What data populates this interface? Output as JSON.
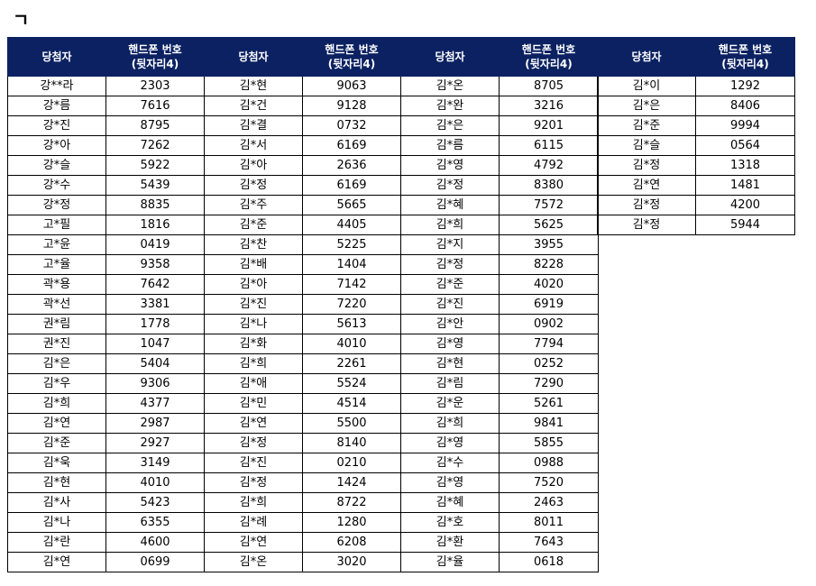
{
  "section_title": "ㄱ",
  "header": {
    "winner": "당첨자",
    "phone_line1": "핸드폰 번호",
    "phone_line2": "(뒷자리4)"
  },
  "rows": [
    [
      "강**라",
      "2303",
      "김*현",
      "9063",
      "김*온",
      "8705",
      "김*이",
      "1292"
    ],
    [
      "강*름",
      "7616",
      "김*건",
      "9128",
      "김*완",
      "3216",
      "김*은",
      "8406"
    ],
    [
      "강*진",
      "8795",
      "김*결",
      "0732",
      "김*은",
      "9201",
      "김*준",
      "9994"
    ],
    [
      "강*아",
      "7262",
      "김*서",
      "6169",
      "김*름",
      "6115",
      "김*슬",
      "0564"
    ],
    [
      "강*슬",
      "5922",
      "김*아",
      "2636",
      "김*영",
      "4792",
      "김*정",
      "1318"
    ],
    [
      "강*수",
      "5439",
      "김*정",
      "6169",
      "김*정",
      "8380",
      "김*연",
      "1481"
    ],
    [
      "강*정",
      "8835",
      "김*주",
      "5665",
      "김*혜",
      "7572",
      "김*정",
      "4200"
    ],
    [
      "고*필",
      "1816",
      "김*준",
      "4405",
      "김*희",
      "5625",
      "김*정",
      "5944"
    ],
    [
      "고*윤",
      "0419",
      "김*찬",
      "5225",
      "김*지",
      "3955"
    ],
    [
      "고*율",
      "9358",
      "김*배",
      "1404",
      "김*정",
      "8228"
    ],
    [
      "곽*용",
      "7642",
      "김*아",
      "7142",
      "김*준",
      "4020"
    ],
    [
      "곽*선",
      "3381",
      "김*진",
      "7220",
      "김*진",
      "6919"
    ],
    [
      "권*림",
      "1778",
      "김*나",
      "5613",
      "김*안",
      "0902"
    ],
    [
      "권*진",
      "1047",
      "김*화",
      "4010",
      "김*영",
      "7794"
    ],
    [
      "김*은",
      "5404",
      "김*희",
      "2261",
      "김*현",
      "0252"
    ],
    [
      "김*우",
      "9306",
      "김*애",
      "5524",
      "김*림",
      "7290"
    ],
    [
      "김*희",
      "4377",
      "김*민",
      "4514",
      "김*운",
      "5261"
    ],
    [
      "김*연",
      "2987",
      "김*연",
      "5500",
      "김*희",
      "9841"
    ],
    [
      "김*준",
      "2927",
      "김*정",
      "8140",
      "김*영",
      "5855"
    ],
    [
      "김*욱",
      "3149",
      "김*진",
      "0210",
      "김*수",
      "0988"
    ],
    [
      "김*현",
      "4010",
      "김*정",
      "1424",
      "김*영",
      "7520"
    ],
    [
      "김*사",
      "5423",
      "김*희",
      "8722",
      "김*혜",
      "2463"
    ],
    [
      "김*나",
      "6355",
      "김*례",
      "1280",
      "김*호",
      "8011"
    ],
    [
      "김*란",
      "4600",
      "김*연",
      "6208",
      "김*환",
      "7643"
    ],
    [
      "김*연",
      "0699",
      "김*온",
      "3020",
      "김*율",
      "0618"
    ]
  ]
}
